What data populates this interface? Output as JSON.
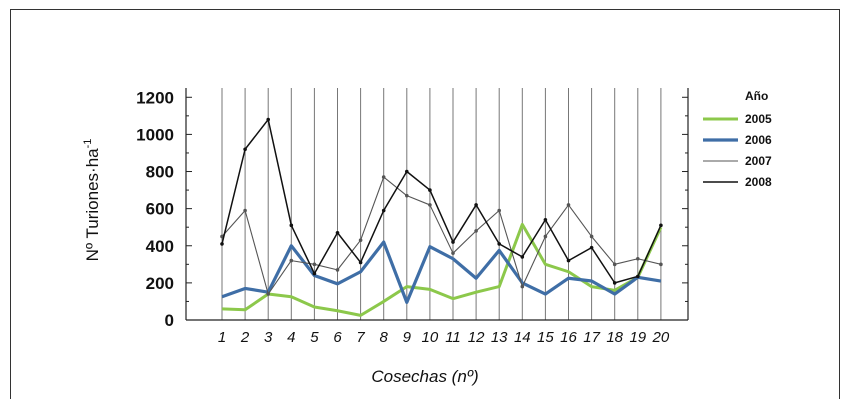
{
  "chart_data": {
    "type": "line",
    "title": "",
    "xlabel": "Cosechas (nº)",
    "ylabel": "Nº Turiones·ha",
    "ylabel_superscript": "-1",
    "ylim": [
      0,
      1250
    ],
    "y_ticks": [
      "0",
      "200",
      "400",
      "600",
      "800",
      "1000",
      "1200"
    ],
    "y_tick_values": [
      0,
      200,
      400,
      600,
      800,
      1000,
      1200
    ],
    "categories": [
      "1",
      "2",
      "3",
      "4",
      "5",
      "6",
      "7",
      "8",
      "9",
      "10",
      "11",
      "12",
      "13",
      "14",
      "15",
      "16",
      "17",
      "18",
      "19",
      "20"
    ],
    "grid": "vertical lines",
    "legend_title": "Año",
    "legend_position": "right",
    "series": [
      {
        "name": "2005",
        "color": "#8cc84b",
        "values": [
          60,
          55,
          140,
          125,
          70,
          50,
          25,
          100,
          180,
          165,
          115,
          150,
          180,
          515,
          300,
          260,
          180,
          160,
          230,
          500
        ]
      },
      {
        "name": "2006",
        "color": "#3f6ea6",
        "values": [
          125,
          170,
          150,
          400,
          240,
          195,
          260,
          420,
          95,
          395,
          330,
          225,
          375,
          200,
          140,
          225,
          210,
          140,
          230,
          210
        ]
      },
      {
        "name": "2007",
        "color": "#555555",
        "values": [
          450,
          590,
          140,
          320,
          300,
          270,
          430,
          770,
          670,
          620,
          360,
          480,
          590,
          180,
          450,
          620,
          450,
          300,
          330,
          300
        ]
      },
      {
        "name": "2008",
        "color": "#111111",
        "values": [
          410,
          920,
          1080,
          510,
          250,
          470,
          310,
          590,
          800,
          700,
          420,
          620,
          410,
          340,
          540,
          320,
          390,
          200,
          235,
          510
        ]
      }
    ]
  }
}
